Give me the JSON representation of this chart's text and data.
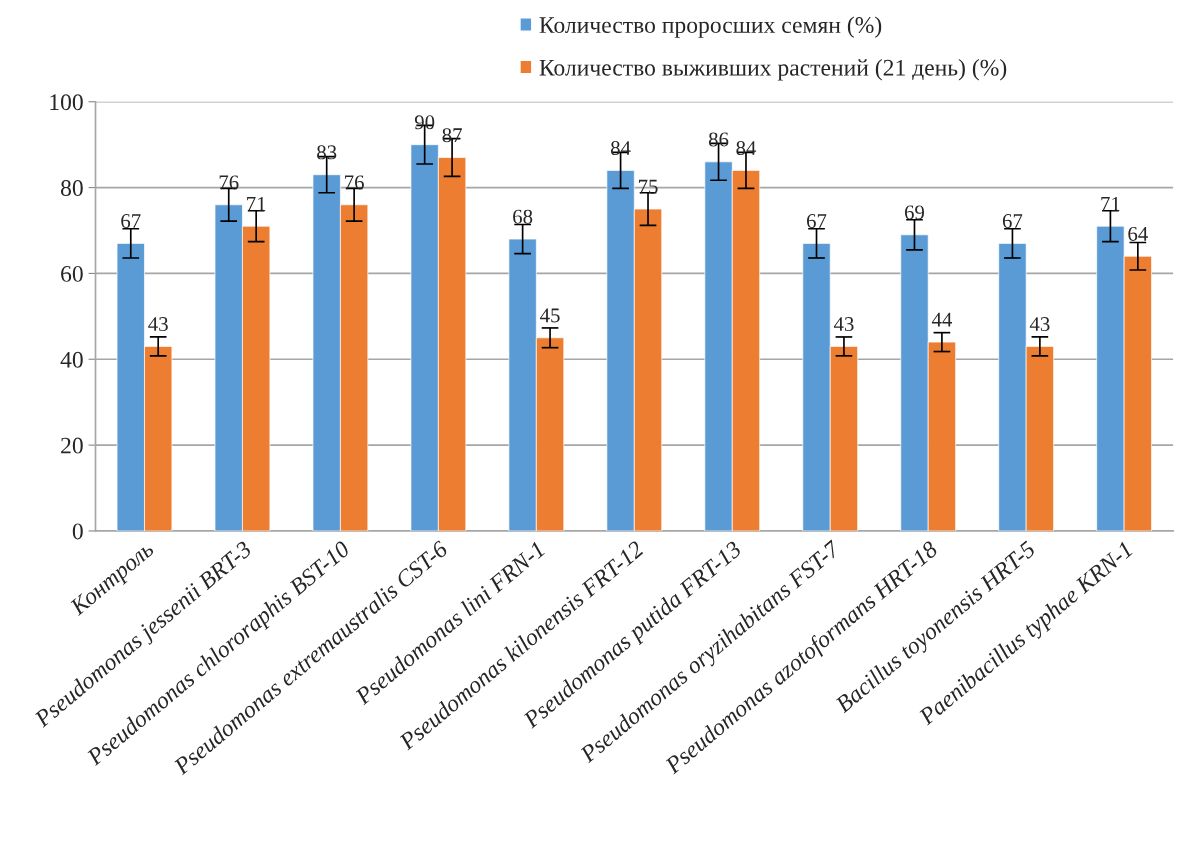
{
  "chart_data": {
    "type": "bar",
    "categories": [
      "Контроль",
      "Pseudomonas jessenii BRT-3",
      "Pseudomonas chlororaphis BST-10",
      "Pseudomonas extremaustralis CST-6",
      "Pseudomonas lini FRN-1",
      "Pseudomonas kilonensis FRT-12",
      "Pseudomonas putida FRT-13",
      "Pseudomonas oryzihabitans FST-7",
      "Pseudomonas azotoformans HRT-18",
      "Bacillus toyonensis HRT-5",
      "Paenibacillus typhae KRN-1"
    ],
    "series": [
      {
        "name": "Количество проросших семян (%)",
        "color": "#5b9bd5",
        "values": [
          67,
          76,
          83,
          90,
          68,
          84,
          86,
          67,
          69,
          67,
          71
        ],
        "errors": [
          3.4,
          3.8,
          4.2,
          4.5,
          3.4,
          4.2,
          4.3,
          3.4,
          3.5,
          3.4,
          3.6
        ]
      },
      {
        "name": "Количество выживших растений (21 день) (%)",
        "color": "#ed7d31",
        "values": [
          43,
          71,
          76,
          87,
          45,
          75,
          84,
          43,
          44,
          43,
          64
        ],
        "errors": [
          2.2,
          3.6,
          3.8,
          4.4,
          2.3,
          3.8,
          4.2,
          2.2,
          2.2,
          2.2,
          3.2
        ]
      }
    ],
    "ylim": [
      0,
      100
    ],
    "yticks": [
      0,
      20,
      40,
      60,
      80,
      100
    ],
    "grid": "y",
    "legend": "top",
    "data_labels": true
  }
}
